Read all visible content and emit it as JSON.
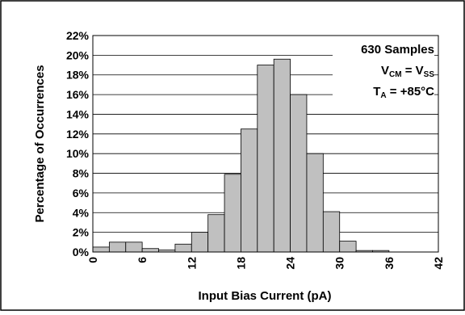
{
  "chart_data": {
    "type": "bar",
    "xlabel": "Input Bias Current (pA)",
    "ylabel": "Percentage of Occurrences",
    "xlim": [
      0,
      42
    ],
    "ylim": [
      0,
      22
    ],
    "bin_width": 2,
    "x_ticks": [
      0,
      6,
      12,
      18,
      24,
      30,
      36,
      42
    ],
    "x_tick_labels": [
      "0",
      "6",
      "12",
      "18",
      "24",
      "30",
      "36",
      "42"
    ],
    "y_ticks": [
      0,
      2,
      4,
      6,
      8,
      10,
      12,
      14,
      16,
      18,
      20,
      22
    ],
    "y_tick_labels": [
      "0%",
      "2%",
      "4%",
      "6%",
      "8%",
      "10%",
      "12%",
      "14%",
      "16%",
      "18%",
      "20%",
      "22%"
    ],
    "bins_start": [
      0,
      2,
      4,
      6,
      8,
      10,
      12,
      14,
      16,
      18,
      20,
      22,
      24,
      26,
      28,
      30,
      32,
      34
    ],
    "values": [
      0.5,
      1.0,
      1.0,
      0.35,
      0.2,
      0.8,
      2.0,
      3.8,
      7.9,
      12.5,
      19.0,
      19.6,
      16.0,
      10.0,
      4.1,
      1.1,
      0.15,
      0.15
    ],
    "grid": {
      "horizontal": true,
      "vertical": false
    },
    "bar_color": "#c0c0c0",
    "annotation": {
      "line1": "630 Samples",
      "line2_main": "V",
      "line2_sub": "CM",
      "line2_mid": " = V",
      "line2_sub2": "SS",
      "line3_main": "T",
      "line3_sub": "A",
      "line3_rest": " = +85°C"
    }
  }
}
